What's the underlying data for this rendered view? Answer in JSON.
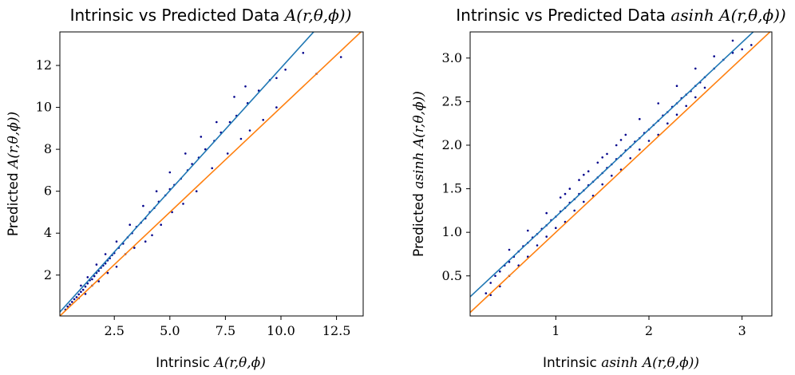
{
  "chart_data": [
    {
      "type": "scatter",
      "title": "Intrinsic vs Predicted Data A(r,θ,ϕ))",
      "title_text": "Intrinsic vs Predicted Data ",
      "title_math": "A(r,θ,ϕ))",
      "xlabel_text": "Intrinsic ",
      "xlabel_math": "A(r,θ,ϕ)",
      "ylabel_text": "Predicted ",
      "ylabel_math": "A(r,θ,ϕ))",
      "xlim": [
        0.05,
        13.7
      ],
      "ylim": [
        0.05,
        13.6
      ],
      "xticks": [
        2.5,
        5.0,
        7.5,
        10.0,
        12.5
      ],
      "xtick_labels": [
        "2.5",
        "5.0",
        "7.5",
        "10.0",
        "12.5"
      ],
      "yticks": [
        2,
        4,
        6,
        8,
        10,
        12
      ],
      "ytick_labels": [
        "2",
        "4",
        "6",
        "8",
        "10",
        "12"
      ],
      "grid": false,
      "point_color": "#00008b",
      "fit_line": {
        "slope": 1.17,
        "intercept": 0.18,
        "color": "#1f77b4"
      },
      "identity_line": {
        "slope": 1.0,
        "intercept": 0.0,
        "color": "#ff7f0e"
      },
      "points": [
        [
          0.3,
          0.35
        ],
        [
          0.4,
          0.5
        ],
        [
          0.5,
          0.6
        ],
        [
          0.6,
          0.72
        ],
        [
          0.7,
          0.85
        ],
        [
          0.8,
          0.95
        ],
        [
          0.9,
          1.08
        ],
        [
          1.0,
          1.2
        ],
        [
          1.1,
          1.3
        ],
        [
          1.2,
          1.45
        ],
        [
          1.3,
          1.6
        ],
        [
          1.4,
          1.75
        ],
        [
          1.5,
          1.8
        ],
        [
          1.6,
          1.95
        ],
        [
          1.7,
          2.1
        ],
        [
          1.8,
          2.2
        ],
        [
          1.9,
          2.35
        ],
        [
          2.0,
          2.45
        ],
        [
          2.1,
          2.55
        ],
        [
          2.2,
          2.7
        ],
        [
          2.3,
          2.8
        ],
        [
          2.4,
          2.95
        ],
        [
          2.5,
          3.05
        ],
        [
          2.7,
          3.3
        ],
        [
          2.9,
          3.5
        ],
        [
          3.1,
          3.8
        ],
        [
          3.3,
          4.0
        ],
        [
          3.5,
          4.3
        ],
        [
          3.7,
          4.5
        ],
        [
          3.9,
          4.7
        ],
        [
          4.1,
          5.0
        ],
        [
          4.3,
          5.2
        ],
        [
          4.5,
          5.5
        ],
        [
          4.8,
          5.8
        ],
        [
          5.0,
          6.1
        ],
        [
          5.2,
          6.3
        ],
        [
          5.5,
          6.6
        ],
        [
          5.8,
          7.0
        ],
        [
          6.0,
          7.3
        ],
        [
          6.3,
          7.6
        ],
        [
          6.6,
          8.0
        ],
        [
          7.0,
          8.4
        ],
        [
          7.3,
          8.8
        ],
        [
          7.7,
          9.3
        ],
        [
          8.0,
          9.6
        ],
        [
          8.5,
          10.2
        ],
        [
          9.0,
          10.8
        ],
        [
          9.5,
          11.3
        ],
        [
          10.2,
          11.8
        ],
        [
          11.0,
          12.6
        ],
        [
          11.6,
          11.6
        ],
        [
          12.7,
          12.4
        ],
        [
          0.9,
          0.9
        ],
        [
          1.2,
          1.1
        ],
        [
          1.5,
          1.5
        ],
        [
          1.8,
          1.7
        ],
        [
          2.2,
          2.1
        ],
        [
          2.6,
          2.4
        ],
        [
          3.0,
          3.0
        ],
        [
          3.4,
          3.3
        ],
        [
          3.9,
          3.6
        ],
        [
          4.2,
          3.9
        ],
        [
          4.6,
          4.4
        ],
        [
          5.1,
          5.0
        ],
        [
          5.6,
          5.4
        ],
        [
          6.2,
          6.0
        ],
        [
          6.9,
          7.1
        ],
        [
          7.6,
          7.8
        ],
        [
          8.2,
          8.5
        ],
        [
          8.6,
          8.9
        ],
        [
          9.2,
          9.4
        ],
        [
          9.8,
          10.0
        ],
        [
          1.0,
          1.5
        ],
        [
          1.3,
          1.9
        ],
        [
          1.7,
          2.5
        ],
        [
          2.1,
          3.0
        ],
        [
          2.6,
          3.6
        ],
        [
          3.2,
          4.4
        ],
        [
          3.8,
          5.3
        ],
        [
          4.4,
          6.0
        ],
        [
          5.0,
          6.9
        ],
        [
          5.7,
          7.8
        ],
        [
          6.4,
          8.6
        ],
        [
          7.1,
          9.3
        ],
        [
          7.9,
          10.5
        ],
        [
          8.4,
          11.0
        ],
        [
          9.8,
          11.4
        ]
      ]
    },
    {
      "type": "scatter",
      "title": "Intrinsic vs Predicted Data asinh A(r,θ,ϕ))",
      "title_text": "Intrinsic vs Predicted Data ",
      "title_math": "asinh A(r,θ,ϕ))",
      "xlabel_text": "Intrinsic ",
      "xlabel_math": "asinh A(r,θ,ϕ))",
      "ylabel_text": "Predicted ",
      "ylabel_math": "asinh A(r,θ,ϕ))",
      "xlim": [
        0.08,
        3.32
      ],
      "ylim": [
        0.04,
        3.3
      ],
      "xticks": [
        1,
        2,
        3
      ],
      "xtick_labels": [
        "1",
        "2",
        "3"
      ],
      "yticks": [
        0.5,
        1.0,
        1.5,
        2.0,
        2.5,
        3.0
      ],
      "ytick_labels": [
        "0.5",
        "1.0",
        "1.5",
        "2.0",
        "2.5",
        "3.0"
      ],
      "grid": false,
      "point_color": "#00008b",
      "fit_line": {
        "slope": 1.0,
        "intercept": 0.18,
        "color": "#1f77b4"
      },
      "identity_line": {
        "slope": 1.0,
        "intercept": 0.0,
        "color": "#ff7f0e"
      },
      "points": [
        [
          0.25,
          0.3
        ],
        [
          0.3,
          0.42
        ],
        [
          0.35,
          0.5
        ],
        [
          0.4,
          0.55
        ],
        [
          0.45,
          0.62
        ],
        [
          0.5,
          0.66
        ],
        [
          0.55,
          0.72
        ],
        [
          0.6,
          0.78
        ],
        [
          0.65,
          0.84
        ],
        [
          0.7,
          0.88
        ],
        [
          0.75,
          0.94
        ],
        [
          0.8,
          0.98
        ],
        [
          0.85,
          1.04
        ],
        [
          0.9,
          1.08
        ],
        [
          0.95,
          1.14
        ],
        [
          1.0,
          1.18
        ],
        [
          1.05,
          1.24
        ],
        [
          1.1,
          1.28
        ],
        [
          1.15,
          1.34
        ],
        [
          1.2,
          1.38
        ],
        [
          1.25,
          1.44
        ],
        [
          1.3,
          1.48
        ],
        [
          1.35,
          1.54
        ],
        [
          1.4,
          1.58
        ],
        [
          1.45,
          1.63
        ],
        [
          1.5,
          1.68
        ],
        [
          1.55,
          1.74
        ],
        [
          1.6,
          1.78
        ],
        [
          1.65,
          1.84
        ],
        [
          1.7,
          1.88
        ],
        [
          1.75,
          1.94
        ],
        [
          1.8,
          1.98
        ],
        [
          1.85,
          2.04
        ],
        [
          1.9,
          2.08
        ],
        [
          1.95,
          2.14
        ],
        [
          2.0,
          2.18
        ],
        [
          2.05,
          2.23
        ],
        [
          2.1,
          2.28
        ],
        [
          2.15,
          2.34
        ],
        [
          2.2,
          2.38
        ],
        [
          2.25,
          2.44
        ],
        [
          2.3,
          2.48
        ],
        [
          2.35,
          2.54
        ],
        [
          2.4,
          2.58
        ],
        [
          2.45,
          2.62
        ],
        [
          2.5,
          2.68
        ],
        [
          2.55,
          2.72
        ],
        [
          2.6,
          2.78
        ],
        [
          2.7,
          2.88
        ],
        [
          2.8,
          2.98
        ],
        [
          2.9,
          3.06
        ],
        [
          3.0,
          3.1
        ],
        [
          3.1,
          3.15
        ],
        [
          0.3,
          0.28
        ],
        [
          0.4,
          0.38
        ],
        [
          0.5,
          0.5
        ],
        [
          0.6,
          0.62
        ],
        [
          0.7,
          0.72
        ],
        [
          0.8,
          0.85
        ],
        [
          0.9,
          0.95
        ],
        [
          1.0,
          1.05
        ],
        [
          1.1,
          1.12
        ],
        [
          1.2,
          1.25
        ],
        [
          1.3,
          1.35
        ],
        [
          1.4,
          1.42
        ],
        [
          1.5,
          1.55
        ],
        [
          1.6,
          1.65
        ],
        [
          1.7,
          1.72
        ],
        [
          1.8,
          1.85
        ],
        [
          1.9,
          1.95
        ],
        [
          2.0,
          2.05
        ],
        [
          2.1,
          2.12
        ],
        [
          2.2,
          2.25
        ],
        [
          2.3,
          2.35
        ],
        [
          2.4,
          2.45
        ],
        [
          2.5,
          2.55
        ],
        [
          2.6,
          2.66
        ],
        [
          0.5,
          0.8
        ],
        [
          0.7,
          1.02
        ],
        [
          0.9,
          1.22
        ],
        [
          1.1,
          1.44
        ],
        [
          1.3,
          1.66
        ],
        [
          1.5,
          1.86
        ],
        [
          1.7,
          2.06
        ],
        [
          1.9,
          2.3
        ],
        [
          2.1,
          2.48
        ],
        [
          2.3,
          2.68
        ],
        [
          2.5,
          2.88
        ],
        [
          2.7,
          3.02
        ],
        [
          2.9,
          3.2
        ],
        [
          1.55,
          1.9
        ],
        [
          1.65,
          2.0
        ],
        [
          1.75,
          2.12
        ],
        [
          1.45,
          1.8
        ],
        [
          1.35,
          1.7
        ],
        [
          1.25,
          1.6
        ],
        [
          1.15,
          1.5
        ],
        [
          1.05,
          1.4
        ]
      ]
    }
  ]
}
